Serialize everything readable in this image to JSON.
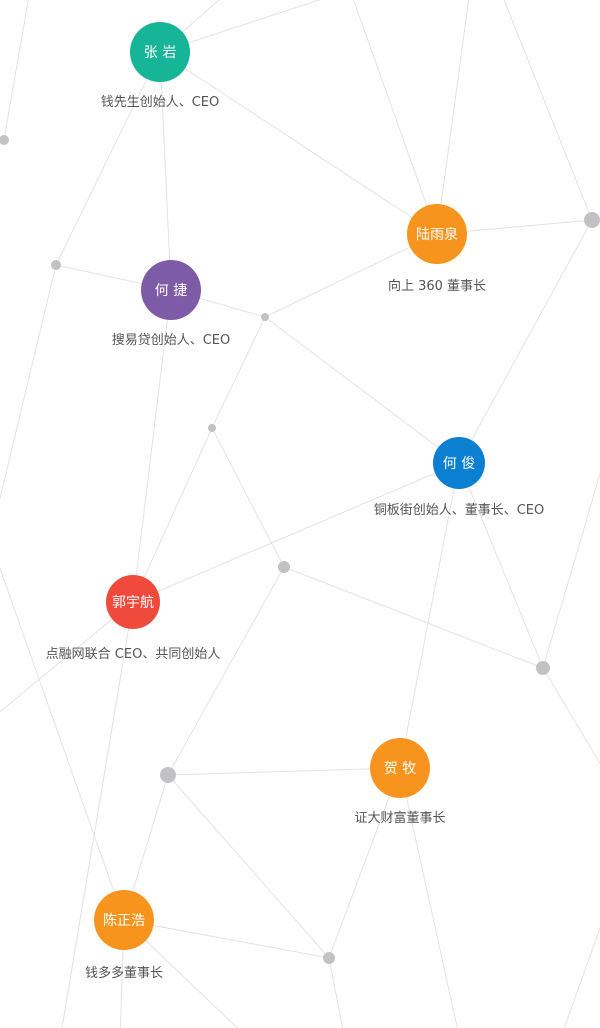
{
  "colors": {
    "teal": "#17b597",
    "orange": "#f7941e",
    "purple": "#7d5ba6",
    "blue": "#0b7fd2",
    "red": "#ef4a3c",
    "line": "#e3e3e3",
    "dot": "#c2c2c4"
  },
  "people": [
    {
      "name": "张 岩",
      "title": "钱先生创始人、CEO",
      "color": "#17b597"
    },
    {
      "name": "陆雨泉",
      "title": "向上 360 董事长",
      "color": "#f7941e"
    },
    {
      "name": "何 捷",
      "title": "搜易贷创始人、CEO",
      "color": "#7d5ba6"
    },
    {
      "name": "何 俊",
      "title": "铜板街创始人、董事长、CEO",
      "color": "#0b7fd2"
    },
    {
      "name": "郭宇航",
      "title": "点融网联合 CEO、共同创始人",
      "color": "#ef4a3c"
    },
    {
      "name": "贺 牧",
      "title": "证大财富董事长",
      "color": "#f7941e"
    },
    {
      "name": "陈正浩",
      "title": "钱多多董事长",
      "color": "#f7941e"
    }
  ]
}
